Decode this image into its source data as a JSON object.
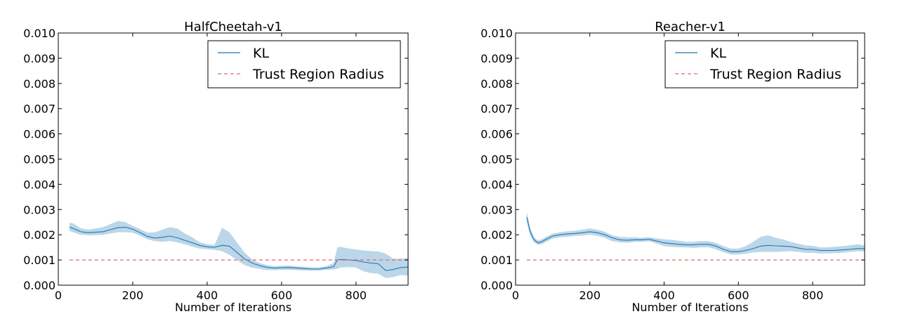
{
  "colors": {
    "kl": "#1f77b4",
    "band": "#a6c8e2",
    "trust": "#e06666",
    "frame": "#000000"
  },
  "chart_data": [
    {
      "type": "line",
      "title": "HalfCheetah-v1",
      "xlabel": "Number of Iterations",
      "ylabel": "",
      "xlim": [
        0,
        940
      ],
      "ylim": [
        0,
        0.01
      ],
      "xticks": [
        "0",
        "200",
        "400",
        "600",
        "800"
      ],
      "yticks": [
        "0.000",
        "0.001",
        "0.002",
        "0.003",
        "0.004",
        "0.005",
        "0.006",
        "0.007",
        "0.008",
        "0.009",
        "0.010"
      ],
      "grid": false,
      "legend": {
        "position": "top-right",
        "entries": [
          "KL",
          "Trust Region Radius"
        ]
      },
      "series": [
        {
          "name": "KL",
          "x": [
            30,
            40,
            60,
            80,
            100,
            120,
            140,
            160,
            180,
            200,
            220,
            240,
            260,
            280,
            300,
            320,
            340,
            360,
            380,
            400,
            420,
            440,
            460,
            480,
            500,
            520,
            540,
            560,
            580,
            600,
            620,
            640,
            660,
            680,
            700,
            720,
            740,
            750,
            760,
            780,
            800,
            820,
            840,
            860,
            880,
            900,
            920,
            940
          ],
          "y": [
            0.0023,
            0.00225,
            0.00212,
            0.00208,
            0.0021,
            0.00212,
            0.0022,
            0.00228,
            0.0023,
            0.00222,
            0.00208,
            0.00193,
            0.00187,
            0.0019,
            0.00195,
            0.00188,
            0.00178,
            0.00168,
            0.00158,
            0.00152,
            0.0015,
            0.00158,
            0.00155,
            0.0013,
            0.00105,
            0.00088,
            0.00078,
            0.00071,
            0.00068,
            0.00069,
            0.0007,
            0.00068,
            0.00066,
            0.00064,
            0.00064,
            0.00068,
            0.00073,
            0.001,
            0.00102,
            0.001,
            0.00098,
            0.00092,
            0.00088,
            0.00085,
            0.00058,
            0.00062,
            0.0007,
            0.00072
          ],
          "lower": [
            0.00215,
            0.0021,
            0.002,
            0.00198,
            0.00198,
            0.002,
            0.00205,
            0.0021,
            0.0021,
            0.00208,
            0.00196,
            0.00182,
            0.00175,
            0.00172,
            0.00175,
            0.0017,
            0.00162,
            0.00153,
            0.00145,
            0.00143,
            0.0014,
            0.00135,
            0.0012,
            0.001,
            0.0008,
            0.0007,
            0.00065,
            0.0006,
            0.0006,
            0.00061,
            0.00061,
            0.0006,
            0.00058,
            0.00058,
            0.00058,
            0.00061,
            0.00062,
            0.00065,
            0.0007,
            0.00072,
            0.0007,
            0.00055,
            0.00048,
            0.00045,
            0.00028,
            0.00032,
            0.0004,
            0.00038
          ],
          "upper": [
            0.00248,
            0.00245,
            0.00226,
            0.0022,
            0.00225,
            0.0023,
            0.00242,
            0.00255,
            0.0025,
            0.00235,
            0.00222,
            0.00208,
            0.0021,
            0.0022,
            0.0023,
            0.00225,
            0.00205,
            0.0019,
            0.0017,
            0.00162,
            0.0016,
            0.00228,
            0.0021,
            0.0017,
            0.0013,
            0.00103,
            0.00088,
            0.0008,
            0.00075,
            0.00077,
            0.00078,
            0.00075,
            0.00073,
            0.00071,
            0.0007,
            0.00075,
            0.00088,
            0.0015,
            0.00152,
            0.00145,
            0.00142,
            0.00138,
            0.00135,
            0.00134,
            0.00125,
            0.00105,
            0.00105,
            0.00108
          ]
        },
        {
          "name": "Trust Region Radius",
          "x": [
            30,
            940
          ],
          "y": [
            0.001,
            0.001
          ],
          "style": "dashed"
        }
      ]
    },
    {
      "type": "line",
      "title": "Reacher-v1",
      "xlabel": "Number of Iterations",
      "ylabel": "",
      "xlim": [
        0,
        940
      ],
      "ylim": [
        0,
        0.01
      ],
      "xticks": [
        "0",
        "200",
        "400",
        "600",
        "800"
      ],
      "yticks": [
        "0.000",
        "0.001",
        "0.002",
        "0.003",
        "0.004",
        "0.005",
        "0.006",
        "0.007",
        "0.008",
        "0.009",
        "0.010"
      ],
      "grid": false,
      "legend": {
        "position": "top-right",
        "entries": [
          "KL",
          "Trust Region Radius"
        ]
      },
      "series": [
        {
          "name": "KL",
          "x": [
            30,
            35,
            40,
            50,
            60,
            70,
            80,
            100,
            120,
            140,
            160,
            180,
            200,
            220,
            240,
            260,
            280,
            300,
            320,
            340,
            360,
            380,
            400,
            420,
            440,
            460,
            480,
            500,
            520,
            540,
            560,
            580,
            600,
            620,
            640,
            660,
            680,
            700,
            720,
            740,
            760,
            780,
            800,
            820,
            840,
            860,
            880,
            900,
            920,
            940
          ],
          "y": [
            0.0027,
            0.0024,
            0.0021,
            0.0018,
            0.00168,
            0.00172,
            0.0018,
            0.00195,
            0.002,
            0.00203,
            0.00205,
            0.00208,
            0.00212,
            0.00208,
            0.002,
            0.00188,
            0.0018,
            0.00178,
            0.0018,
            0.0018,
            0.00182,
            0.00175,
            0.00168,
            0.00165,
            0.00162,
            0.0016,
            0.0016,
            0.00162,
            0.00162,
            0.00155,
            0.00142,
            0.00133,
            0.00133,
            0.00138,
            0.00145,
            0.00155,
            0.00158,
            0.00156,
            0.00155,
            0.00153,
            0.00148,
            0.00142,
            0.00142,
            0.00138,
            0.00138,
            0.00138,
            0.0014,
            0.00142,
            0.00145,
            0.00145
          ],
          "lower": [
            0.0025,
            0.0022,
            0.00195,
            0.0017,
            0.0016,
            0.00162,
            0.0017,
            0.00185,
            0.0019,
            0.00192,
            0.00195,
            0.00197,
            0.002,
            0.00196,
            0.00188,
            0.00175,
            0.0017,
            0.00168,
            0.00172,
            0.00172,
            0.00174,
            0.00165,
            0.00155,
            0.00152,
            0.0015,
            0.0015,
            0.00148,
            0.0015,
            0.0015,
            0.00142,
            0.0013,
            0.00122,
            0.00122,
            0.00125,
            0.0013,
            0.00132,
            0.00132,
            0.00132,
            0.00133,
            0.00135,
            0.00132,
            0.00128,
            0.00128,
            0.00126,
            0.00126,
            0.00127,
            0.00128,
            0.00132,
            0.00135,
            0.00133
          ],
          "upper": [
            0.0029,
            0.0026,
            0.00225,
            0.0019,
            0.00178,
            0.00182,
            0.0019,
            0.00205,
            0.0021,
            0.00214,
            0.00216,
            0.0022,
            0.00225,
            0.0022,
            0.00212,
            0.00198,
            0.00192,
            0.0019,
            0.0019,
            0.00188,
            0.0019,
            0.00186,
            0.00182,
            0.0018,
            0.00176,
            0.00172,
            0.00172,
            0.00175,
            0.00175,
            0.00167,
            0.00155,
            0.00145,
            0.00145,
            0.00155,
            0.00172,
            0.00192,
            0.00198,
            0.00188,
            0.00182,
            0.00172,
            0.00165,
            0.00158,
            0.00156,
            0.0015,
            0.0015,
            0.00152,
            0.00155,
            0.00158,
            0.00162,
            0.00158
          ]
        },
        {
          "name": "Trust Region Radius",
          "x": [
            30,
            940
          ],
          "y": [
            0.001,
            0.001
          ],
          "style": "dashed"
        }
      ]
    }
  ]
}
